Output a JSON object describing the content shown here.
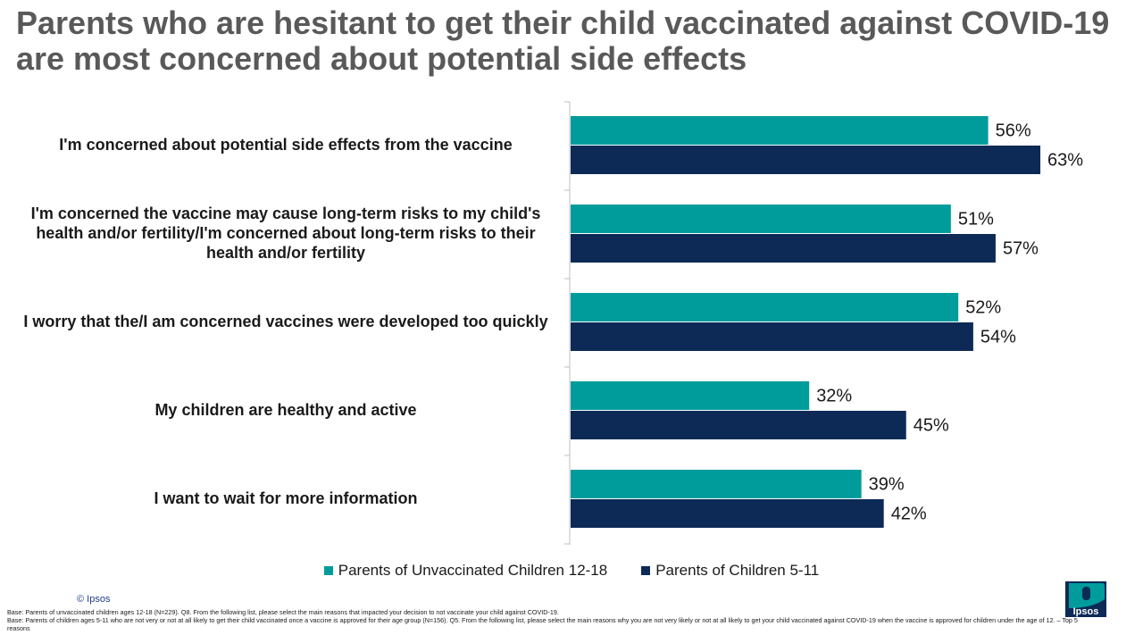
{
  "title": "Parents who are hesitant to get their child vaccinated against COVID-19 are most concerned about potential side effects",
  "chart_data": {
    "type": "bar",
    "orientation": "horizontal",
    "categories": [
      "I'm concerned about potential side effects from the vaccine",
      "I'm concerned the vaccine may cause long-term risks to my child's health and/or fertility/I'm concerned about long-term risks to their health and/or fertility",
      "I worry that the/I am concerned vaccines were developed too quickly",
      "My children are healthy and active",
      "I want to wait for more information"
    ],
    "series": [
      {
        "name": "Parents of Unvaccinated Children 12-18",
        "values": [
          56,
          51,
          52,
          32,
          39
        ],
        "color": "#009c9c"
      },
      {
        "name": "Parents of Children 5-11",
        "values": [
          63,
          57,
          54,
          45,
          42
        ],
        "color": "#0d2a57"
      }
    ],
    "value_labels": [
      [
        "56%",
        "51%",
        "52%",
        "32%",
        "39%"
      ],
      [
        "63%",
        "57%",
        "54%",
        "45%",
        "42%"
      ]
    ],
    "xlim": [
      0,
      100
    ],
    "grid": false,
    "legend_position": "bottom"
  },
  "copyright": "© Ipsos",
  "base_notes": [
    "Base: Parents of unvaccinated children ages 12-18 (N=229). Q8. From the following list, please select the main reasons that impacted your decision to not vaccinate your child against COVID-19.",
    "Base: Parents of children ages 5-11 who are not very or not at all likely to get their child vaccinated once a vaccine is approved for their age group (N=156). Q5. From the following list, please select the main reasons why you are not very likely or not at all likely to get your child vaccinated against COVID-19 when the vaccine is approved for children under the age of 12. – Top 5 reasons"
  ],
  "logo": {
    "text": "Ipsos",
    "color": "#009c9c"
  }
}
